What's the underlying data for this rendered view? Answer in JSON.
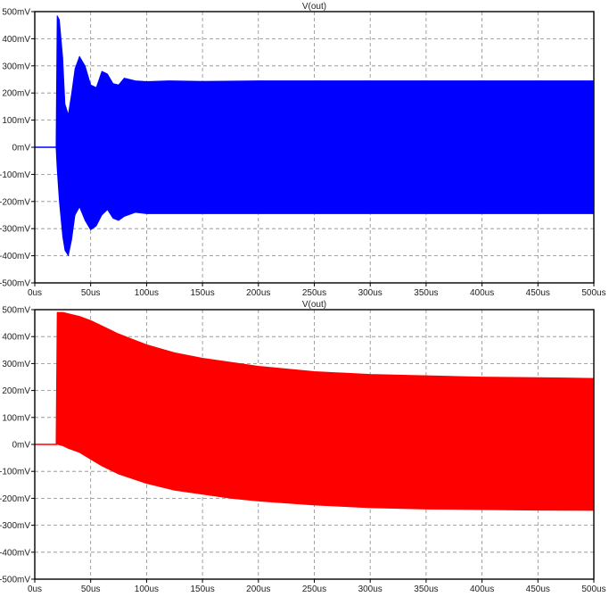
{
  "chart_data": [
    {
      "type": "line",
      "title": "V(out)",
      "title_color": "#3355cc",
      "series": [
        {
          "color": "#0000ff",
          "x": [
            0,
            19,
            20,
            22,
            25,
            27,
            30,
            33,
            36,
            40,
            45,
            50,
            55,
            60,
            65,
            70,
            75,
            80,
            90,
            100,
            120,
            150,
            200,
            300,
            400,
            500
          ],
          "upper": [
            0,
            0,
            485,
            470,
            330,
            160,
            120,
            200,
            290,
            335,
            300,
            230,
            220,
            280,
            270,
            235,
            230,
            255,
            245,
            242,
            245,
            243,
            245,
            245,
            245,
            245
          ],
          "lower": [
            0,
            0,
            -80,
            -200,
            -330,
            -380,
            -400,
            -340,
            -250,
            -220,
            -270,
            -305,
            -290,
            -250,
            -230,
            -262,
            -270,
            -255,
            -240,
            -245,
            -245,
            -245,
            -245,
            -245,
            -245,
            -245
          ]
        }
      ],
      "xlabels": [
        "0us",
        "50us",
        "100us",
        "150us",
        "200us",
        "250us",
        "300us",
        "350us",
        "400us",
        "450us",
        "500us"
      ],
      "ylabels": [
        "500mV",
        "400mV",
        "300mV",
        "200mV",
        "100mV",
        "0mV",
        "-100mV",
        "-200mV",
        "-300mV",
        "-400mV",
        "-500mV"
      ],
      "xlim": [
        0,
        500
      ],
      "ylim": [
        -500,
        500
      ],
      "grid": true
    },
    {
      "type": "line",
      "title": "V(out)",
      "title_color": "#cc3333",
      "series": [
        {
          "color": "#ff0000",
          "x": [
            0,
            19,
            20,
            25,
            30,
            40,
            50,
            60,
            75,
            100,
            125,
            150,
            175,
            200,
            250,
            300,
            350,
            400,
            450,
            500
          ],
          "upper": [
            0,
            0,
            490,
            490,
            485,
            475,
            460,
            440,
            410,
            370,
            340,
            320,
            305,
            290,
            270,
            260,
            255,
            250,
            248,
            245
          ],
          "lower": [
            0,
            0,
            0,
            -5,
            -15,
            -30,
            -55,
            -80,
            -110,
            -145,
            -170,
            -185,
            -200,
            -210,
            -225,
            -235,
            -240,
            -242,
            -244,
            -245
          ]
        }
      ],
      "xlabels": [
        "0us",
        "50us",
        "100us",
        "150us",
        "200us",
        "250us",
        "300us",
        "350us",
        "400us",
        "450us",
        "500us"
      ],
      "ylabels": [
        "500mV",
        "400mV",
        "300mV",
        "200mV",
        "100mV",
        "0mV",
        "-100mV",
        "-200mV",
        "-300mV",
        "-400mV",
        "-500mV"
      ],
      "xlim": [
        0,
        500
      ],
      "ylim": [
        -500,
        500
      ],
      "grid": true
    }
  ]
}
